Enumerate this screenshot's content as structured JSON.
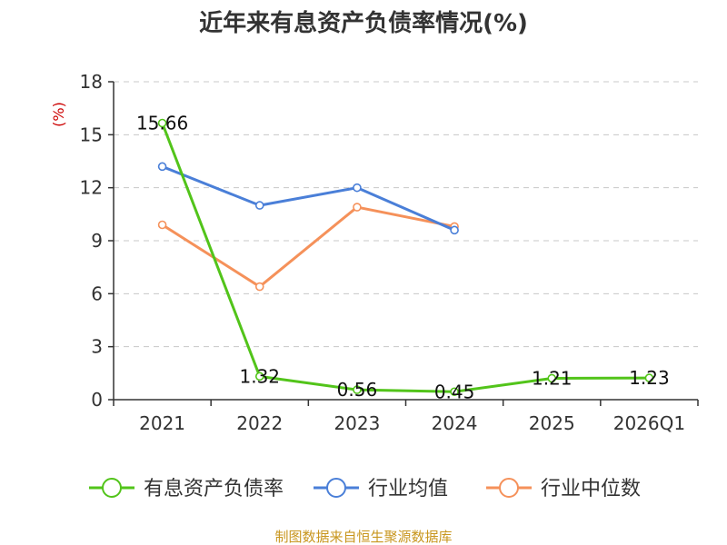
{
  "chart_data": {
    "type": "line",
    "title": "近年来有息资产负债率情况(%)",
    "ylabel": "(%)",
    "categories": [
      "2021",
      "2022",
      "2023",
      "2024",
      "2025",
      "2026Q1"
    ],
    "ylim": [
      0,
      18
    ],
    "yticks": [
      0,
      3,
      6,
      9,
      12,
      15,
      18
    ],
    "grid": true,
    "legend_position": "bottom",
    "series": [
      {
        "name": "有息资产负债率",
        "color": "#52c41a",
        "values": [
          15.66,
          1.32,
          0.56,
          0.45,
          1.21,
          1.23
        ],
        "labels": [
          "15.66",
          "1.32",
          "0.56",
          "0.45",
          "1.21",
          "1.23"
        ]
      },
      {
        "name": "行业均值",
        "color": "#4a7fd8",
        "values": [
          13.2,
          11.0,
          12.0,
          9.6,
          null,
          null
        ]
      },
      {
        "name": "行业中位数",
        "color": "#f5915a",
        "values": [
          9.9,
          6.4,
          10.9,
          9.8,
          null,
          null
        ]
      }
    ]
  },
  "source": "制图数据来自恒生聚源数据库"
}
